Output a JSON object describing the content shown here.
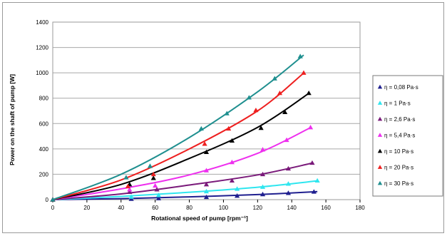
{
  "chart_data": {
    "type": "line",
    "title": "",
    "xlabel": "Rotational speed of pump [rpm⁻¹]",
    "ylabel": "Power on the shaft of pump [W]",
    "xlim": [
      0,
      180
    ],
    "ylim": [
      0,
      1400
    ],
    "xticks": [
      "0",
      "20",
      "40",
      "60",
      "80",
      "100",
      "120",
      "140",
      "160",
      "180"
    ],
    "yticks": [
      "0",
      "200",
      "400",
      "600",
      "800",
      "1000",
      "1200",
      "1400"
    ],
    "grid": "horizontal",
    "legend_position": "right",
    "series": [
      {
        "name": "η = 0,08 Pa·s",
        "color": "#1f1f8f",
        "points": [
          [
            0,
            0
          ],
          [
            46,
            5
          ],
          [
            62,
            10
          ],
          [
            90,
            20
          ],
          [
            108,
            30
          ],
          [
            123,
            42
          ],
          [
            138,
            52
          ],
          [
            153,
            62
          ]
        ],
        "fit": [
          [
            0,
            0
          ],
          [
            40,
            8
          ],
          [
            80,
            22
          ],
          [
            120,
            40
          ],
          [
            155,
            63
          ]
        ]
      },
      {
        "name": "η = 1 Pa·s",
        "color": "#2fe6ef",
        "points": [
          [
            0,
            0
          ],
          [
            46,
            22
          ],
          [
            62,
            35
          ],
          [
            90,
            65
          ],
          [
            108,
            85
          ],
          [
            123,
            100
          ],
          [
            138,
            125
          ],
          [
            155,
            150
          ]
        ],
        "fit": [
          [
            0,
            0
          ],
          [
            40,
            25
          ],
          [
            80,
            58
          ],
          [
            120,
            98
          ],
          [
            155,
            148
          ]
        ]
      },
      {
        "name": "η = 2,6 Pa·s",
        "color": "#7a1a7a",
        "points": [
          [
            0,
            0
          ],
          [
            45,
            60
          ],
          [
            61,
            80
          ],
          [
            90,
            120
          ],
          [
            105,
            150
          ],
          [
            123,
            200
          ],
          [
            138,
            245
          ],
          [
            152,
            290
          ]
        ],
        "fit": [
          [
            0,
            0
          ],
          [
            40,
            45
          ],
          [
            80,
            115
          ],
          [
            120,
            195
          ],
          [
            152,
            288
          ]
        ]
      },
      {
        "name": "η = 5,4 Pa·s",
        "color": "#ee2fee",
        "points": [
          [
            0,
            0
          ],
          [
            45,
            80
          ],
          [
            60,
            110
          ],
          [
            90,
            230
          ],
          [
            105,
            295
          ],
          [
            123,
            395
          ],
          [
            137,
            470
          ],
          [
            151,
            570
          ]
        ],
        "fit": [
          [
            0,
            0
          ],
          [
            40,
            85
          ],
          [
            80,
            195
          ],
          [
            120,
            365
          ],
          [
            151,
            568
          ]
        ]
      },
      {
        "name": "η = 10 Pa·s",
        "color": "#000000",
        "points": [
          [
            0,
            0
          ],
          [
            45,
            120
          ],
          [
            59,
            170
          ],
          [
            90,
            375
          ],
          [
            105,
            465
          ],
          [
            122,
            565
          ],
          [
            136,
            690
          ],
          [
            150,
            840
          ]
        ],
        "fit": [
          [
            0,
            0
          ],
          [
            40,
            120
          ],
          [
            80,
            325
          ],
          [
            120,
            570
          ],
          [
            150,
            838
          ]
        ]
      },
      {
        "name": "η = 20 Pa·s",
        "color": "#ee1f1f",
        "points": [
          [
            0,
            0
          ],
          [
            44,
            105
          ],
          [
            59,
            200
          ],
          [
            89,
            440
          ],
          [
            103,
            560
          ],
          [
            119,
            705
          ],
          [
            133,
            840
          ],
          [
            147,
            1000
          ]
        ],
        "fit": [
          [
            0,
            0
          ],
          [
            40,
            155
          ],
          [
            80,
            400
          ],
          [
            120,
            700
          ],
          [
            147,
            998
          ]
        ]
      },
      {
        "name": "η = 30 Pa·s",
        "color": "#1f8f8f",
        "points": [
          [
            0,
            0
          ],
          [
            43,
            175
          ],
          [
            57,
            265
          ],
          [
            87,
            560
          ],
          [
            102,
            680
          ],
          [
            115,
            805
          ],
          [
            130,
            955
          ],
          [
            145,
            1130
          ]
        ],
        "fit": [
          [
            0,
            0
          ],
          [
            40,
            200
          ],
          [
            80,
            490
          ],
          [
            120,
            850
          ],
          [
            147,
            1140
          ]
        ]
      }
    ]
  }
}
